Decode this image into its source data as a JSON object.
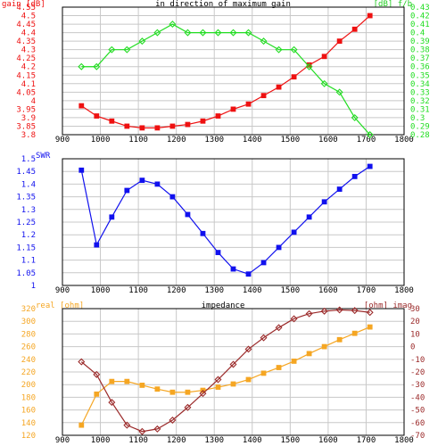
{
  "chart_data": [
    {
      "type": "line",
      "title": "in direction of maximum gain",
      "left_axis_label": "gain [dB]",
      "right_axis_label": "[dB] f/b",
      "x_range": [
        900,
        1800
      ],
      "x_ticks": [
        900,
        1000,
        1100,
        1200,
        1300,
        1400,
        1500,
        1600,
        1700,
        1800
      ],
      "left_range": [
        3.8,
        4.55
      ],
      "left_ticks": [
        3.8,
        3.85,
        3.9,
        3.95,
        4.0,
        4.05,
        4.1,
        4.15,
        4.2,
        4.25,
        4.3,
        4.35,
        4.4,
        4.45,
        4.5,
        4.55
      ],
      "left_tick_labels": [
        "3.8",
        "3.85",
        "3.9",
        "3.95",
        "4",
        "4.05",
        "4.1",
        "4.15",
        "4.2",
        "4.25",
        "4.3",
        "4.35",
        "4.4",
        "4.45",
        "4.5",
        "4.55"
      ],
      "right_range": [
        0.28,
        0.43
      ],
      "right_ticks": [
        0.28,
        0.29,
        0.3,
        0.31,
        0.32,
        0.33,
        0.34,
        0.35,
        0.36,
        0.37,
        0.38,
        0.39,
        0.4,
        0.41,
        0.42,
        0.43
      ],
      "right_tick_labels": [
        "0.28",
        "0.29",
        "0.3",
        "0.31",
        "0.32",
        "0.33",
        "0.34",
        "0.35",
        "0.36",
        "0.37",
        "0.38",
        "0.39",
        "0.4",
        "0.41",
        "0.42",
        "0.43"
      ],
      "grid": true,
      "series": [
        {
          "axis": "left",
          "marker": "square",
          "color": "#ee1111",
          "x": [
            950,
            990,
            1030,
            1070,
            1110,
            1150,
            1190,
            1230,
            1270,
            1310,
            1350,
            1390,
            1430,
            1470,
            1510,
            1550,
            1590,
            1630,
            1670,
            1710
          ],
          "y": [
            3.97,
            3.91,
            3.88,
            3.85,
            3.84,
            3.84,
            3.85,
            3.86,
            3.88,
            3.91,
            3.95,
            3.98,
            4.03,
            4.08,
            4.14,
            4.21,
            4.26,
            4.35,
            4.42,
            4.5
          ]
        },
        {
          "axis": "right",
          "marker": "diamond",
          "color": "#22dd22",
          "x": [
            950,
            990,
            1030,
            1070,
            1110,
            1150,
            1190,
            1230,
            1270,
            1310,
            1350,
            1390,
            1430,
            1470,
            1510,
            1550,
            1590,
            1630,
            1670,
            1710
          ],
          "y": [
            0.36,
            0.36,
            0.38,
            0.38,
            0.39,
            0.4,
            0.41,
            0.4,
            0.4,
            0.4,
            0.4,
            0.4,
            0.39,
            0.38,
            0.38,
            0.36,
            0.34,
            0.33,
            0.3,
            0.28
          ]
        }
      ]
    },
    {
      "type": "line",
      "left_axis_label": "SWR",
      "x_range": [
        900,
        1800
      ],
      "x_ticks": [
        900,
        1000,
        1100,
        1200,
        1300,
        1400,
        1500,
        1600,
        1700,
        1800
      ],
      "left_range": [
        1.0,
        1.5
      ],
      "left_ticks": [
        1.0,
        1.05,
        1.1,
        1.15,
        1.2,
        1.25,
        1.3,
        1.35,
        1.4,
        1.45,
        1.5
      ],
      "left_tick_labels": [
        "1",
        "1.05",
        "1.1",
        "1.15",
        "1.2",
        "1.25",
        "1.3",
        "1.35",
        "1.4",
        "1.45",
        "1.5"
      ],
      "grid": true,
      "series": [
        {
          "axis": "left",
          "marker": "square",
          "color": "#1111ee",
          "x": [
            950,
            990,
            1030,
            1070,
            1110,
            1150,
            1190,
            1230,
            1270,
            1310,
            1350,
            1390,
            1430,
            1470,
            1510,
            1550,
            1590,
            1630,
            1670,
            1710
          ],
          "y": [
            1.455,
            1.16,
            1.27,
            1.375,
            1.415,
            1.4,
            1.35,
            1.28,
            1.205,
            1.13,
            1.065,
            1.045,
            1.09,
            1.15,
            1.21,
            1.27,
            1.33,
            1.38,
            1.43,
            1.47
          ]
        }
      ]
    },
    {
      "type": "line",
      "title": "impedance",
      "left_axis_label": "real [ohm]",
      "right_axis_label": "[ohm] imag",
      "x_range": [
        900,
        1800
      ],
      "x_ticks": [
        900,
        1000,
        1100,
        1200,
        1300,
        1400,
        1500,
        1600,
        1700,
        1800
      ],
      "left_range": [
        120,
        320
      ],
      "left_ticks": [
        120,
        140,
        160,
        180,
        200,
        220,
        240,
        260,
        280,
        300,
        320
      ],
      "left_tick_labels": [
        "120",
        "140",
        "160",
        "180",
        "200",
        "220",
        "240",
        "260",
        "280",
        "300",
        "320"
      ],
      "right_range": [
        -70,
        30
      ],
      "right_ticks": [
        -70,
        -60,
        -50,
        -40,
        -30,
        -20,
        -10,
        0,
        10,
        20,
        30
      ],
      "right_tick_labels": [
        "-70",
        "-60",
        "-50",
        "-40",
        "-30",
        "-20",
        "-10",
        "0",
        "10",
        "20",
        "30"
      ],
      "grid": true,
      "series": [
        {
          "axis": "left",
          "marker": "square",
          "color": "#f5a623",
          "x": [
            950,
            990,
            1030,
            1070,
            1110,
            1150,
            1190,
            1230,
            1270,
            1310,
            1350,
            1390,
            1430,
            1470,
            1510,
            1550,
            1590,
            1630,
            1670,
            1710
          ],
          "y": [
            136,
            185,
            205,
            205,
            199,
            193,
            188,
            188,
            191,
            196,
            201,
            208,
            218,
            227,
            237,
            249,
            260,
            271,
            281,
            291
          ]
        },
        {
          "axis": "right",
          "marker": "diamond",
          "color": "#9b2a2a",
          "x": [
            950,
            990,
            1030,
            1070,
            1110,
            1150,
            1190,
            1230,
            1270,
            1310,
            1350,
            1390,
            1430,
            1470,
            1510,
            1550,
            1590,
            1630,
            1670,
            1710
          ],
          "y": [
            -12,
            -22,
            -44,
            -62,
            -67,
            -65,
            -58,
            -48,
            -37,
            -26,
            -14,
            -2,
            7,
            15,
            22,
            26,
            28,
            29,
            28.5,
            27
          ]
        }
      ]
    }
  ]
}
